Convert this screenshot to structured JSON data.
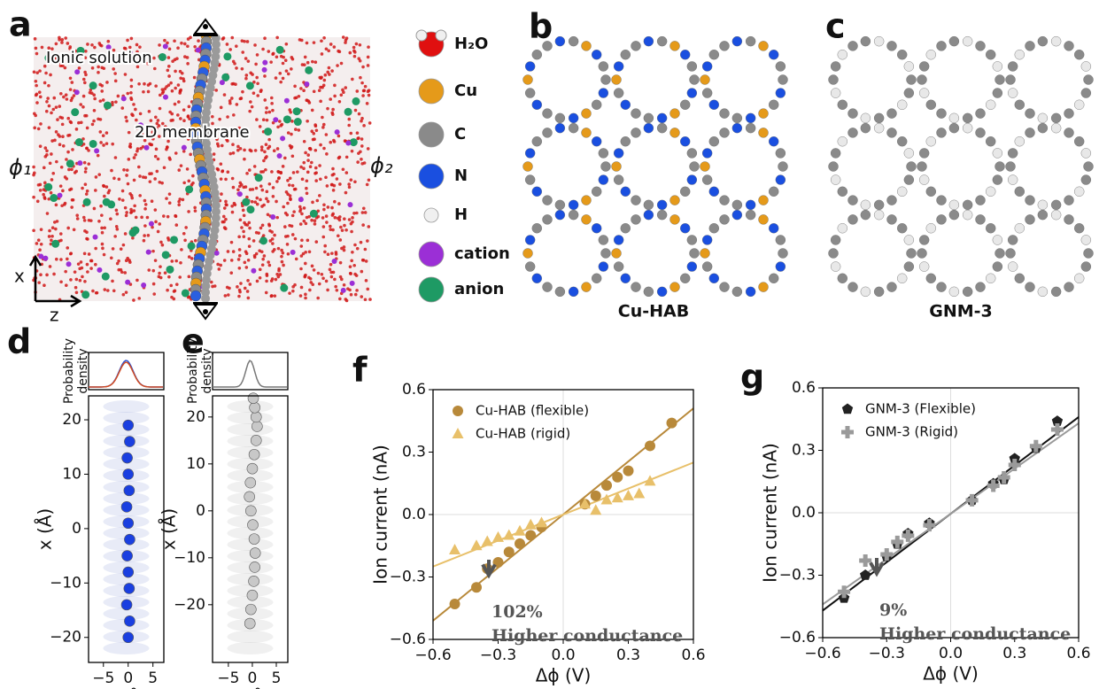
{
  "panel_labels": [
    "a",
    "b",
    "c",
    "d",
    "e",
    "f",
    "g"
  ],
  "panel_a": {
    "solution": "Ionic solution",
    "membrane": "2D membrane",
    "phi_left": "ϕ₁",
    "phi_right": "ϕ₂",
    "axis_x": "x",
    "axis_z": "z"
  },
  "legend_atoms": [
    "H₂O",
    "Cu",
    "C",
    "N",
    "H",
    "cation",
    "anion"
  ],
  "panel_b_caption": "Cu-HAB",
  "panel_c_caption": "GNM-3",
  "chart_data": [
    {
      "type": "scatter",
      "xlabel": "z (Å)",
      "ylabel": "x (Å)",
      "density_label": [
        "Probability",
        "density"
      ],
      "xlim": [
        -8,
        7.2
      ],
      "ylim": [
        -24.6,
        24.4
      ],
      "xticks": [
        {
          "value": -5,
          "label": "−5"
        },
        0,
        5
      ],
      "yticks": [
        {
          "value": -20,
          "label": "−20"
        },
        {
          "value": -10,
          "label": "−10"
        },
        0,
        10,
        20
      ],
      "series": [
        {
          "color": "#1a3fe0",
          "marker": "circle",
          "x": [
            0,
            0.3,
            -0.3,
            0.2,
            0,
            -0.2,
            0.3,
            0,
            -0.3,
            0.2,
            0,
            -0.2,
            0.3,
            0
          ],
          "values": [
            -20,
            -17,
            -14,
            -11,
            -8,
            -5,
            -2,
            1,
            4,
            7,
            10,
            13,
            16,
            19
          ]
        }
      ]
    },
    {
      "type": "scatter",
      "xlabel": "z (Å)",
      "ylabel": "x (Å)",
      "density_label": [
        "Probability",
        "density"
      ],
      "xlim": [
        -8.3,
        7.4
      ],
      "ylim": [
        -32.3,
        24.5
      ],
      "xticks": [
        {
          "value": -5,
          "label": "−5"
        },
        0,
        5
      ],
      "yticks": [
        {
          "value": -20,
          "label": "−20"
        },
        {
          "value": -10,
          "label": "−10"
        },
        0,
        10,
        20
      ],
      "series": [
        {
          "color": "#c8c8c8",
          "marker": "circle",
          "x": [
            -0.5,
            -0.3,
            0,
            0.3,
            0.5,
            0.6,
            0.4,
            0.1,
            -0.3,
            -0.6,
            -0.4,
            0,
            0.4,
            0.8,
            1.0,
            0.8,
            0.5,
            0.2
          ],
          "values": [
            -24,
            -21,
            -18,
            -15,
            -12,
            -9,
            -6,
            -3,
            0,
            3,
            6,
            9,
            12,
            15,
            18,
            20,
            22,
            24
          ]
        }
      ]
    },
    {
      "type": "scatter",
      "xlabel": "Δϕ (V)",
      "ylabel": "Ion current (nA)",
      "legend": "upper left",
      "zero_lines": true,
      "xlim": [
        -0.6,
        0.6
      ],
      "ylim": [
        -0.6,
        0.6
      ],
      "xticks": [
        {
          "value": -0.6,
          "label": "−0.6"
        },
        {
          "value": -0.3,
          "label": "−0.3"
        },
        {
          "value": 0,
          "label": "0.0"
        },
        0.3,
        0.6
      ],
      "yticks": [
        {
          "value": -0.6,
          "label": "−0.6"
        },
        {
          "value": -0.3,
          "label": "−0.3"
        },
        {
          "value": 0,
          "label": "0.0"
        },
        0.3,
        0.6
      ],
      "series": [
        {
          "name": "Cu-HAB (flexible)",
          "color": "#b8893a",
          "marker": "circle",
          "x": [
            -0.5,
            -0.4,
            -0.35,
            -0.3,
            -0.25,
            -0.2,
            -0.15,
            -0.1,
            0.1,
            0.15,
            0.2,
            0.25,
            0.3,
            0.4,
            0.5
          ],
          "values": [
            -0.43,
            -0.35,
            -0.26,
            -0.23,
            -0.18,
            -0.14,
            -0.1,
            -0.06,
            0.05,
            0.09,
            0.14,
            0.18,
            0.21,
            0.33,
            0.44
          ]
        },
        {
          "name": "Cu-HAB (rigid)",
          "color": "#e8c06a",
          "marker": "triangle",
          "x": [
            -0.5,
            -0.4,
            -0.35,
            -0.3,
            -0.25,
            -0.2,
            -0.15,
            -0.1,
            0.1,
            0.15,
            0.2,
            0.25,
            0.3,
            0.35,
            0.4
          ],
          "values": [
            -0.17,
            -0.15,
            -0.13,
            -0.11,
            -0.1,
            -0.08,
            -0.05,
            -0.04,
            0.05,
            0.02,
            0.07,
            0.08,
            0.09,
            0.1,
            0.16
          ]
        }
      ],
      "fits": [
        {
          "color": "#b8893a",
          "x": [
            -0.6,
            0.6
          ],
          "values": [
            -0.51,
            0.51
          ]
        },
        {
          "color": "#e8c06a",
          "x": [
            -0.6,
            0.6
          ],
          "values": [
            -0.25,
            0.25
          ]
        }
      ],
      "annotations": [
        "102%",
        "Higher conductance"
      ]
    },
    {
      "type": "scatter",
      "xlabel": "Δϕ (V)",
      "ylabel": "Ion current (nA)",
      "legend": "upper left",
      "zero_lines": true,
      "xlim": [
        -0.6,
        0.6
      ],
      "ylim": [
        -0.6,
        0.6
      ],
      "xticks": [
        {
          "value": -0.6,
          "label": "−0.6"
        },
        {
          "value": -0.3,
          "label": "−0.3"
        },
        {
          "value": 0,
          "label": "0.0"
        },
        0.3,
        0.6
      ],
      "yticks": [
        {
          "value": -0.6,
          "label": "−0.6"
        },
        {
          "value": -0.3,
          "label": "−0.3"
        },
        {
          "value": 0,
          "label": "0.0"
        },
        0.3,
        0.6
      ],
      "series": [
        {
          "name": "GNM-3 (Flexible)",
          "color": "#222222",
          "marker": "pentagon",
          "x": [
            -0.5,
            -0.4,
            -0.3,
            -0.25,
            -0.2,
            -0.1,
            0.1,
            0.2,
            0.25,
            0.3,
            0.4,
            0.5
          ],
          "values": [
            -0.41,
            -0.3,
            -0.21,
            -0.15,
            -0.1,
            -0.05,
            0.06,
            0.14,
            0.16,
            0.26,
            0.31,
            0.44
          ]
        },
        {
          "name": "GNM-3 (Rigid)",
          "color": "#9a9a9a",
          "marker": "plus",
          "x": [
            -0.5,
            -0.4,
            -0.3,
            -0.25,
            -0.2,
            -0.1,
            0.1,
            0.2,
            0.25,
            0.3,
            0.4,
            0.5
          ],
          "values": [
            -0.38,
            -0.23,
            -0.2,
            -0.14,
            -0.11,
            -0.06,
            0.06,
            0.13,
            0.17,
            0.23,
            0.32,
            0.4
          ]
        }
      ],
      "fits": [
        {
          "color": "#111111",
          "x": [
            -0.6,
            0.6
          ],
          "values": [
            -0.47,
            0.46
          ]
        },
        {
          "color": "#9a9a9a",
          "x": [
            -0.6,
            0.6
          ],
          "values": [
            -0.44,
            0.43
          ]
        }
      ],
      "annotations": [
        "9%",
        "Higher conductance"
      ]
    }
  ]
}
